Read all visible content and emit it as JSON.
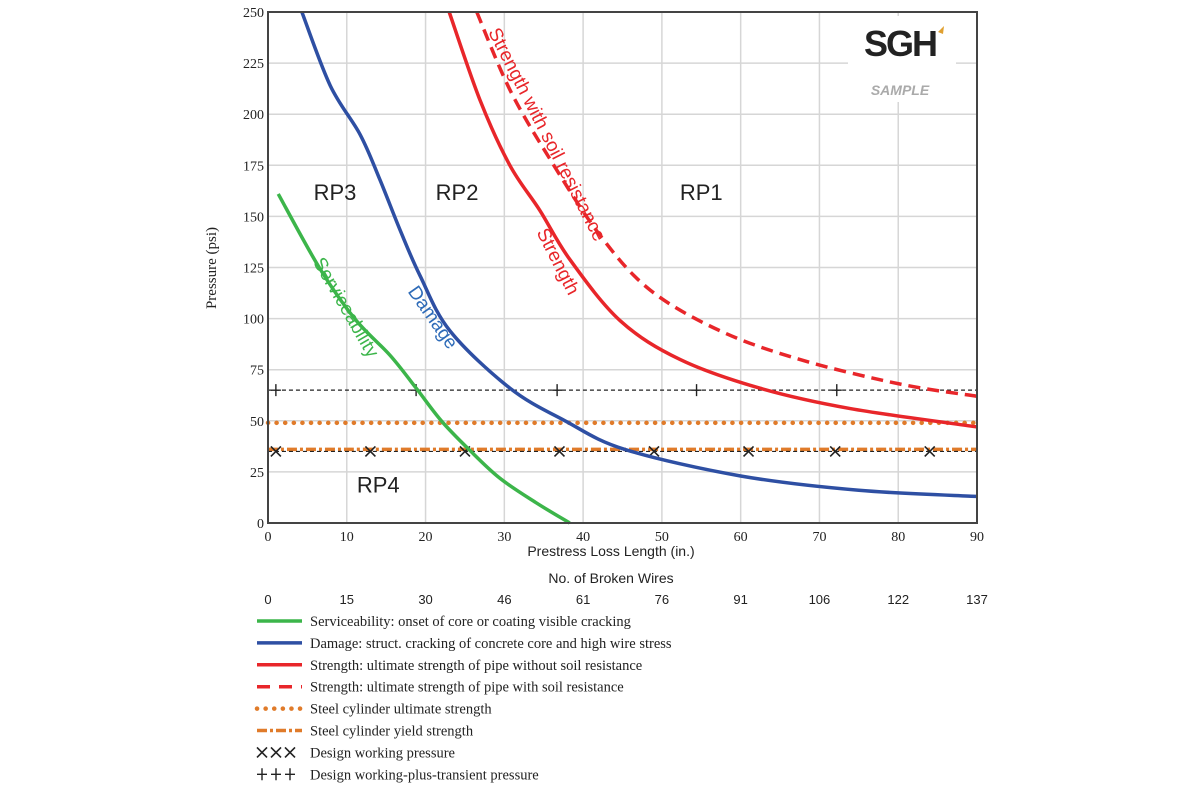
{
  "chart_data": {
    "type": "line",
    "xlabel": "Prestress Loss Length (in.)",
    "ylabel": "Pressure (psi)",
    "xlim": [
      0,
      90
    ],
    "ylim": [
      0,
      250
    ],
    "x_ticks": [
      0,
      10,
      20,
      30,
      40,
      50,
      60,
      70,
      80,
      90
    ],
    "y_ticks": [
      0,
      25,
      50,
      75,
      100,
      125,
      150,
      175,
      200,
      225,
      250
    ],
    "grid": true,
    "secondary_axis": {
      "label": "No. of Broken Wires",
      "ticks": [
        "0",
        "15",
        "30",
        "46",
        "61",
        "76",
        "91",
        "106",
        "122",
        "137"
      ]
    },
    "series": [
      {
        "name": "Serviceability: onset of core or coating visible cracking",
        "curve_label": "Serviceability",
        "color": "#3cb54a",
        "style": "solid",
        "x": [
          1.3,
          6.5,
          11,
          15.5,
          18.8,
          22,
          25.5,
          29.4,
          34,
          38.3
        ],
        "y": [
          161,
          125,
          100,
          82,
          66,
          50,
          36,
          22,
          10,
          0
        ]
      },
      {
        "name": "Damage: struct. cracking of concrete core and high wire stress",
        "curve_label": "Damage",
        "color": "#2e4fa3",
        "style": "solid",
        "x": [
          4.3,
          7.9,
          11.7,
          14.2,
          16.8,
          19.3,
          23.1,
          30.7,
          37.7,
          45.3,
          60,
          75,
          90
        ],
        "y": [
          250,
          214,
          190,
          168,
          143,
          121,
          94,
          66,
          50,
          36,
          23,
          16,
          13
        ]
      },
      {
        "name": "Strength: ultimate strength of pipe without soil resistance",
        "curve_label": "Strength",
        "color": "#e8262a",
        "style": "solid",
        "x": [
          23,
          26.9,
          30.7,
          34.5,
          38.3,
          44.7,
          52.3,
          62.4,
          73.9,
          90
        ],
        "y": [
          250,
          207,
          175,
          153,
          129,
          99,
          80,
          66,
          56,
          47
        ]
      },
      {
        "name": "Strength: ultimate strength of pipe with soil resistance",
        "curve_label": "Strength with soil resistance",
        "color": "#e8262a",
        "style": "dashed",
        "x": [
          26.5,
          30.7,
          35.8,
          42.1,
          48.5,
          57.4,
          67.5,
          80.2,
          90
        ],
        "y": [
          250,
          212,
          178,
          141,
          114,
          94,
          80,
          68,
          62
        ]
      },
      {
        "name": "Steel cylinder ultimate strength",
        "color": "#e07b2a",
        "style": "dotted",
        "x": [
          0,
          90
        ],
        "y": [
          49,
          49
        ]
      },
      {
        "name": "Steel cylinder yield strength",
        "color": "#e07b2a",
        "style": "dash-dot",
        "x": [
          0,
          90
        ],
        "y": [
          36,
          36
        ]
      },
      {
        "name": "Design working pressure",
        "color": "#222222",
        "style": "x-markers",
        "x": [
          0,
          90
        ],
        "y": [
          35,
          35
        ],
        "marker_x": [
          1,
          13,
          25,
          37,
          49,
          61,
          72,
          84
        ]
      },
      {
        "name": "Design working-plus-transient pressure",
        "color": "#222222",
        "style": "plus-markers",
        "x": [
          0,
          90
        ],
        "y": [
          65,
          65
        ],
        "marker_x": [
          1,
          18.8,
          36.7,
          54.4,
          72.2
        ]
      }
    ],
    "regions": [
      {
        "label": "RP1",
        "x": 55,
        "y": 158
      },
      {
        "label": "RP2",
        "x": 24,
        "y": 158
      },
      {
        "label": "RP3",
        "x": 8.5,
        "y": 158
      },
      {
        "label": "RP4",
        "x": 14,
        "y": 15
      }
    ],
    "legend_position": "bottom"
  },
  "logo": {
    "text": "SGH",
    "watermark": "SAMPLE"
  }
}
